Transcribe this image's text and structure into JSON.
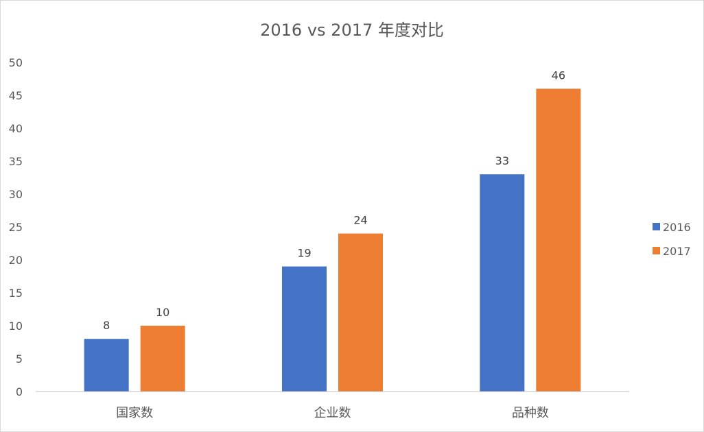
{
  "chart_data": {
    "type": "bar",
    "title": "2016 vs 2017 年度对比",
    "xlabel": "",
    "ylabel": "",
    "categories": [
      "国家数",
      "企业数",
      "品种数"
    ],
    "series": [
      {
        "name": "2016",
        "values": [
          8,
          19,
          33
        ],
        "color": "#4472C4"
      },
      {
        "name": "2017",
        "values": [
          10,
          24,
          46
        ],
        "color": "#ED7D31"
      }
    ],
    "ylim": [
      0,
      50
    ],
    "yticks": [
      "0",
      "5",
      "10",
      "15",
      "20",
      "25",
      "30",
      "35",
      "40",
      "45",
      "50"
    ],
    "grid": false,
    "legend_position": "right"
  }
}
